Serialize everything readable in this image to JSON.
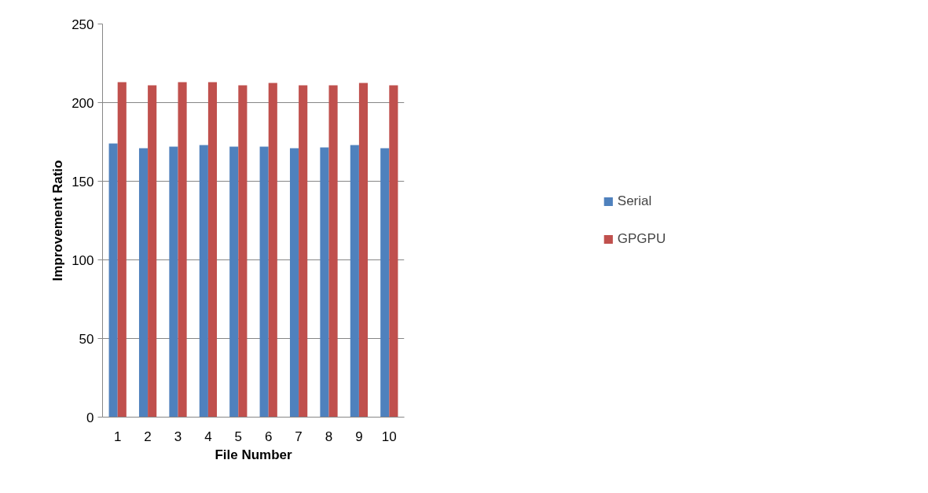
{
  "chart_data": {
    "type": "bar",
    "xlabel": "File Number",
    "ylabel": "Improvement Ratio",
    "categories": [
      "1",
      "2",
      "3",
      "4",
      "5",
      "6",
      "7",
      "8",
      "9",
      "10"
    ],
    "series": [
      {
        "name": "Serial",
        "color": "#4f81bd",
        "values": [
          174,
          171,
          172,
          173,
          172,
          172,
          171,
          171.5,
          173,
          171
        ]
      },
      {
        "name": "GPGPU",
        "color": "#c0504d",
        "values": [
          213,
          211,
          213,
          213,
          211,
          212.5,
          211,
          211,
          212.5,
          211
        ]
      }
    ],
    "ylim": [
      0,
      250
    ],
    "yticks": [
      0,
      50,
      100,
      150,
      200,
      250
    ],
    "grid": "y",
    "legend": "right"
  }
}
